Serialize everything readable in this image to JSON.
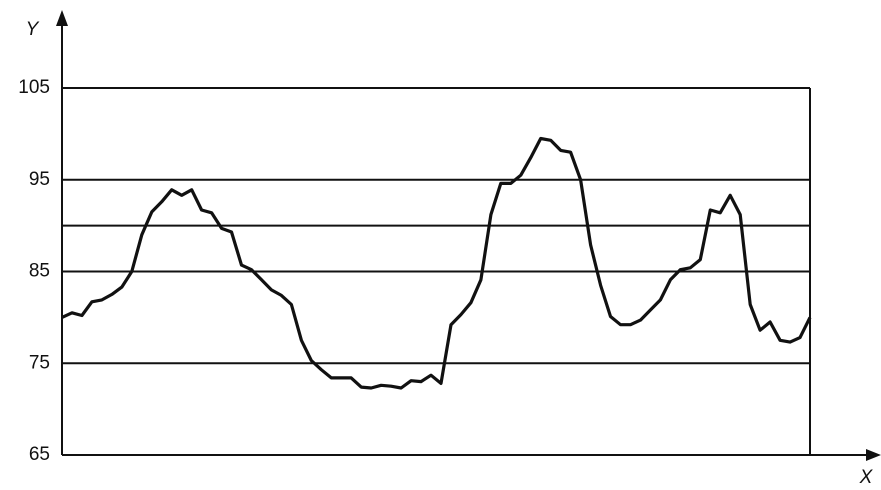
{
  "chart_data": {
    "type": "line",
    "xlabel": "X",
    "ylabel": "Y",
    "x": [
      0,
      1,
      2,
      3,
      4,
      5,
      6,
      7,
      8,
      9,
      10,
      11,
      12,
      13,
      14,
      15,
      16,
      17,
      18,
      19,
      20,
      21,
      22,
      23,
      24,
      25,
      26,
      27,
      28,
      29,
      30,
      31,
      32,
      33,
      34,
      35,
      36,
      37,
      38,
      39,
      40,
      41,
      42,
      43,
      44,
      45,
      46,
      47,
      48,
      49,
      50,
      51,
      52,
      53,
      54,
      55,
      56,
      57,
      58,
      59,
      60,
      61,
      62,
      63,
      64,
      65,
      66,
      67,
      68,
      69,
      70,
      71,
      72,
      73,
      74,
      75
    ],
    "series": [
      {
        "color": "#111111",
        "values": [
          80,
          80.5,
          80.2,
          81.7,
          81.9,
          82.5,
          83.3,
          85,
          89,
          91.5,
          92.6,
          93.9,
          93.3,
          93.9,
          91.7,
          91.4,
          89.7,
          89.3,
          85.7,
          85.2,
          84.1,
          83,
          82.4,
          81.4,
          77.5,
          75.3,
          74.3,
          73.4,
          73.4,
          73.4,
          72.4,
          72.3,
          72.6,
          72.5,
          72.3,
          73.1,
          73,
          73.7,
          72.8,
          79.2,
          80.3,
          81.6,
          84.1,
          91.2,
          94.6,
          94.6,
          95.5,
          97.4,
          99.5,
          99.3,
          98.2,
          98,
          95,
          87.9,
          83.5,
          80.1,
          79.2,
          79.2,
          79.7,
          80.8,
          81.9,
          84.1,
          85.2,
          85.4,
          86.3,
          91.7,
          91.4,
          93.3,
          91.2,
          81.4,
          78.6,
          79.5,
          77.5,
          77.3,
          77.8,
          80
        ]
      }
    ],
    "xlim": [
      0,
      75
    ],
    "ylim": [
      65,
      105
    ],
    "yticks": [
      65,
      75,
      85,
      95,
      105
    ],
    "reference_lines": [
      90
    ],
    "grid": true
  }
}
